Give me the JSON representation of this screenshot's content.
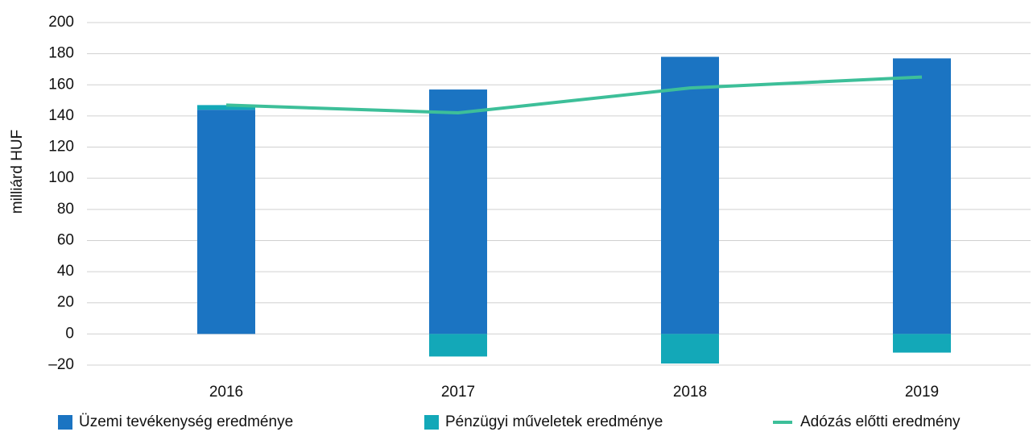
{
  "chart_data": {
    "type": "stacked_bar_line",
    "y_label": "milliárd HUF",
    "categories": [
      "2016",
      "2017",
      "2018",
      "2019"
    ],
    "series": [
      {
        "name": "Üzemi tevékenység eredménye",
        "color": "#1b74c2",
        "kind": "bar",
        "values": [
          144,
          157,
          178,
          177
        ]
      },
      {
        "name": "Pénzügyi műveletek eredménye",
        "color": "#13a8b8",
        "kind": "bar",
        "values": [
          3,
          -14.5,
          -19,
          -12
        ]
      },
      {
        "name": "Adózás előtti eredmény",
        "color": "#3dbf99",
        "kind": "line",
        "values": [
          147,
          142,
          158,
          165
        ]
      }
    ],
    "ylim": [
      -20,
      200
    ],
    "yticks": [
      {
        "value": -20,
        "label": "–20"
      },
      0,
      20,
      40,
      60,
      80,
      100,
      120,
      140,
      160,
      180,
      200
    ],
    "grid": true
  }
}
